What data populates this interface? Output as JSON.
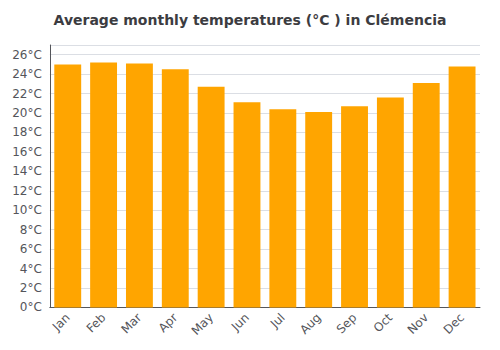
{
  "chart_data": {
    "type": "bar",
    "title": "Average monthly temperatures (°C ) in Clémencia",
    "categories": [
      "Jan",
      "Feb",
      "Mar",
      "Apr",
      "May",
      "Jun",
      "Jul",
      "Aug",
      "Sep",
      "Oct",
      "Nov",
      "Dec"
    ],
    "values": [
      25.0,
      25.2,
      25.1,
      24.5,
      22.7,
      21.1,
      20.4,
      20.1,
      20.7,
      21.6,
      23.1,
      24.8
    ],
    "color": "#FFA500",
    "ylim": [
      0,
      27
    ],
    "yticks": [
      {
        "value": 0,
        "label": "0°C"
      },
      {
        "value": 2,
        "label": "2°C"
      },
      {
        "value": 4,
        "label": "4°C"
      },
      {
        "value": 6,
        "label": "6°C"
      },
      {
        "value": 8,
        "label": "8°C"
      },
      {
        "value": 10,
        "label": "10°C"
      },
      {
        "value": 12,
        "label": "12°C"
      },
      {
        "value": 14,
        "label": "14°C"
      },
      {
        "value": 16,
        "label": "16°C"
      },
      {
        "value": 18,
        "label": "18°C"
      },
      {
        "value": 20,
        "label": "20°C"
      },
      {
        "value": 22,
        "label": "22°C"
      },
      {
        "value": 24,
        "label": "24°C"
      },
      {
        "value": 26,
        "label": "26°C"
      }
    ],
    "grid": true
  }
}
